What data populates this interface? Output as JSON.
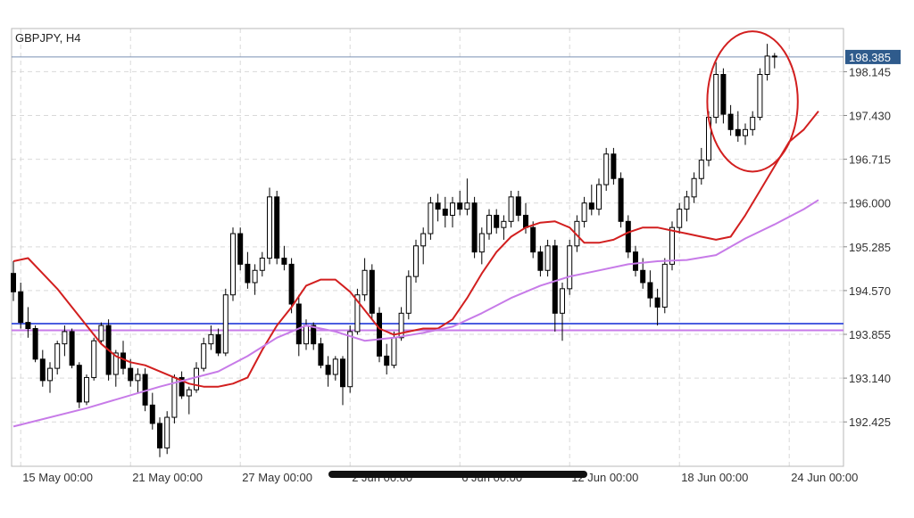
{
  "chart_data": {
    "type": "candlestick",
    "title": "GBPJPY, H4",
    "current_price": 198.385,
    "y_ticks": [
      198.145,
      197.43,
      196.715,
      196.0,
      195.285,
      194.57,
      193.855,
      193.14,
      192.425
    ],
    "ylim": [
      191.7,
      198.85
    ],
    "x_tick_labels": [
      "15 May 00:00",
      "21 May 00:00",
      "27 May 00:00",
      "2 Jun 00:00",
      "6 Jun 00:00",
      "12 Jun 00:00",
      "18 Jun 00:00",
      "24 Jun 00:00"
    ],
    "horizontal_levels": [
      {
        "price": 194.03,
        "color": "#4b5ee0"
      },
      {
        "price": 193.92,
        "color": "#c77be8"
      }
    ],
    "series": [
      {
        "type": "moving_average",
        "color": "#d21f1f",
        "points": [
          [
            0,
            195.05
          ],
          [
            2,
            195.1
          ],
          [
            4,
            194.85
          ],
          [
            6,
            194.6
          ],
          [
            8,
            194.3
          ],
          [
            10,
            194.0
          ],
          [
            12,
            193.7
          ],
          [
            14,
            193.5
          ],
          [
            16,
            193.4
          ],
          [
            18,
            193.35
          ],
          [
            20,
            193.25
          ],
          [
            22,
            193.15
          ],
          [
            24,
            193.05
          ],
          [
            26,
            193.0
          ],
          [
            28,
            193.0
          ],
          [
            30,
            193.05
          ],
          [
            32,
            193.15
          ],
          [
            34,
            193.6
          ],
          [
            36,
            194.0
          ],
          [
            38,
            194.3
          ],
          [
            40,
            194.65
          ],
          [
            42,
            194.75
          ],
          [
            44,
            194.75
          ],
          [
            46,
            194.55
          ],
          [
            48,
            194.25
          ],
          [
            50,
            193.95
          ],
          [
            52,
            193.85
          ],
          [
            54,
            193.9
          ],
          [
            56,
            193.95
          ],
          [
            58,
            193.95
          ],
          [
            60,
            194.1
          ],
          [
            62,
            194.45
          ],
          [
            64,
            194.85
          ],
          [
            66,
            195.2
          ],
          [
            68,
            195.45
          ],
          [
            70,
            195.6
          ],
          [
            72,
            195.68
          ],
          [
            74,
            195.7
          ],
          [
            76,
            195.6
          ],
          [
            78,
            195.35
          ],
          [
            80,
            195.35
          ],
          [
            82,
            195.4
          ],
          [
            84,
            195.52
          ],
          [
            86,
            195.6
          ],
          [
            88,
            195.6
          ],
          [
            90,
            195.55
          ],
          [
            92,
            195.5
          ],
          [
            94,
            195.45
          ],
          [
            96,
            195.4
          ],
          [
            98,
            195.45
          ],
          [
            100,
            195.8
          ],
          [
            102,
            196.2
          ],
          [
            104,
            196.6
          ],
          [
            106,
            197.0
          ],
          [
            108,
            197.2
          ],
          [
            110,
            197.5
          ]
        ]
      },
      {
        "type": "moving_average",
        "color": "#c77be8",
        "points": [
          [
            0,
            192.35
          ],
          [
            10,
            192.65
          ],
          [
            20,
            193.0
          ],
          [
            28,
            193.25
          ],
          [
            32,
            193.5
          ],
          [
            36,
            193.8
          ],
          [
            40,
            194.0
          ],
          [
            44,
            193.9
          ],
          [
            48,
            193.75
          ],
          [
            52,
            193.8
          ],
          [
            56,
            193.88
          ],
          [
            60,
            193.98
          ],
          [
            64,
            194.2
          ],
          [
            68,
            194.45
          ],
          [
            72,
            194.65
          ],
          [
            76,
            194.8
          ],
          [
            80,
            194.9
          ],
          [
            84,
            195.0
          ],
          [
            88,
            195.05
          ],
          [
            92,
            195.07
          ],
          [
            96,
            195.15
          ],
          [
            100,
            195.42
          ],
          [
            104,
            195.65
          ],
          [
            108,
            195.9
          ],
          [
            110,
            196.05
          ]
        ]
      }
    ],
    "candles": [
      [
        194.85,
        195.05,
        194.4,
        194.55
      ],
      [
        194.55,
        194.7,
        193.95,
        194.05
      ],
      [
        194.05,
        194.3,
        193.8,
        193.95
      ],
      [
        193.95,
        194.0,
        193.4,
        193.45
      ],
      [
        193.45,
        193.6,
        193.0,
        193.1
      ],
      [
        193.1,
        193.4,
        192.9,
        193.3
      ],
      [
        193.3,
        193.75,
        193.2,
        193.7
      ],
      [
        193.7,
        194.0,
        193.5,
        193.9
      ],
      [
        193.9,
        193.95,
        193.3,
        193.35
      ],
      [
        193.35,
        193.4,
        192.65,
        192.75
      ],
      [
        192.75,
        193.2,
        192.7,
        193.15
      ],
      [
        193.15,
        193.8,
        193.1,
        193.75
      ],
      [
        193.75,
        194.05,
        193.7,
        194.0
      ],
      [
        194.0,
        194.1,
        193.1,
        193.2
      ],
      [
        193.2,
        193.6,
        193.0,
        193.55
      ],
      [
        193.55,
        193.75,
        193.2,
        193.3
      ],
      [
        193.3,
        193.45,
        193.0,
        193.1
      ],
      [
        193.1,
        193.3,
        192.9,
        193.2
      ],
      [
        193.2,
        193.3,
        192.6,
        192.7
      ],
      [
        192.7,
        192.9,
        192.3,
        192.4
      ],
      [
        192.4,
        192.5,
        191.85,
        192.0
      ],
      [
        192.0,
        192.6,
        191.9,
        192.5
      ],
      [
        192.5,
        193.2,
        192.4,
        193.15
      ],
      [
        193.15,
        193.25,
        192.8,
        192.85
      ],
      [
        192.85,
        193.0,
        192.55,
        192.95
      ],
      [
        192.95,
        193.4,
        192.9,
        193.3
      ],
      [
        193.3,
        193.8,
        193.25,
        193.7
      ],
      [
        193.7,
        194.0,
        193.6,
        193.85
      ],
      [
        193.85,
        193.95,
        193.5,
        193.55
      ],
      [
        193.55,
        194.6,
        193.5,
        194.5
      ],
      [
        194.5,
        195.6,
        194.4,
        195.5
      ],
      [
        195.5,
        195.6,
        194.9,
        195.0
      ],
      [
        195.0,
        195.2,
        194.6,
        194.7
      ],
      [
        194.7,
        195.0,
        194.5,
        194.9
      ],
      [
        194.9,
        195.2,
        194.8,
        195.1
      ],
      [
        195.1,
        196.25,
        195.0,
        196.1
      ],
      [
        196.1,
        196.2,
        195.0,
        195.1
      ],
      [
        195.1,
        195.3,
        194.9,
        195.0
      ],
      [
        195.0,
        195.1,
        194.2,
        194.35
      ],
      [
        194.35,
        194.5,
        193.5,
        193.7
      ],
      [
        193.7,
        194.1,
        193.6,
        194.0
      ],
      [
        194.0,
        194.05,
        193.6,
        193.7
      ],
      [
        193.7,
        193.8,
        193.3,
        193.35
      ],
      [
        193.35,
        193.5,
        193.0,
        193.2
      ],
      [
        193.2,
        193.5,
        193.1,
        193.45
      ],
      [
        193.45,
        193.5,
        192.7,
        193.0
      ],
      [
        193.0,
        194.0,
        192.9,
        193.9
      ],
      [
        193.9,
        194.6,
        193.85,
        194.5
      ],
      [
        194.5,
        195.1,
        194.4,
        194.9
      ],
      [
        194.9,
        195.0,
        194.1,
        194.2
      ],
      [
        194.2,
        194.3,
        193.4,
        193.5
      ],
      [
        193.5,
        193.7,
        193.2,
        193.35
      ],
      [
        193.35,
        193.9,
        193.3,
        193.8
      ],
      [
        193.8,
        194.3,
        193.75,
        194.2
      ],
      [
        194.2,
        194.9,
        194.1,
        194.8
      ],
      [
        194.8,
        195.4,
        194.7,
        195.3
      ],
      [
        195.3,
        195.6,
        195.0,
        195.5
      ],
      [
        195.5,
        196.1,
        195.4,
        196.0
      ],
      [
        196.0,
        196.15,
        195.7,
        195.9
      ],
      [
        195.9,
        196.1,
        195.6,
        195.8
      ],
      [
        195.8,
        196.1,
        195.6,
        196.0
      ],
      [
        196.0,
        196.2,
        195.8,
        195.9
      ],
      [
        195.9,
        196.4,
        195.8,
        196.0
      ],
      [
        196.0,
        196.1,
        195.1,
        195.2
      ],
      [
        195.2,
        195.6,
        195.0,
        195.5
      ],
      [
        195.5,
        195.9,
        195.4,
        195.8
      ],
      [
        195.8,
        195.9,
        195.5,
        195.6
      ],
      [
        195.6,
        195.8,
        195.4,
        195.7
      ],
      [
        195.7,
        196.2,
        195.6,
        196.1
      ],
      [
        196.1,
        196.2,
        195.7,
        195.8
      ],
      [
        195.8,
        196.0,
        195.5,
        195.6
      ],
      [
        195.6,
        195.7,
        195.1,
        195.2
      ],
      [
        195.2,
        195.3,
        194.8,
        194.9
      ],
      [
        194.9,
        195.4,
        194.8,
        195.3
      ],
      [
        195.3,
        195.4,
        193.9,
        194.2
      ],
      [
        194.2,
        194.7,
        193.75,
        194.6
      ],
      [
        194.6,
        195.4,
        194.5,
        195.3
      ],
      [
        195.3,
        195.8,
        195.2,
        195.7
      ],
      [
        195.7,
        196.1,
        195.6,
        196.0
      ],
      [
        196.0,
        196.3,
        195.8,
        195.9
      ],
      [
        195.9,
        196.4,
        195.8,
        196.3
      ],
      [
        196.3,
        196.9,
        196.2,
        196.8
      ],
      [
        196.8,
        196.9,
        196.3,
        196.4
      ],
      [
        196.4,
        196.5,
        195.6,
        195.7
      ],
      [
        195.7,
        195.8,
        195.1,
        195.2
      ],
      [
        195.2,
        195.3,
        194.8,
        194.9
      ],
      [
        194.9,
        195.1,
        194.6,
        194.7
      ],
      [
        194.7,
        194.9,
        194.3,
        194.45
      ],
      [
        194.45,
        194.6,
        194.0,
        194.3
      ],
      [
        194.3,
        195.1,
        194.2,
        195.0
      ],
      [
        195.0,
        195.7,
        194.9,
        195.6
      ],
      [
        195.6,
        196.0,
        195.5,
        195.9
      ],
      [
        195.9,
        196.2,
        195.7,
        196.1
      ],
      [
        196.1,
        196.5,
        196.0,
        196.4
      ],
      [
        196.4,
        196.9,
        196.3,
        196.7
      ],
      [
        196.7,
        197.5,
        196.6,
        197.4
      ],
      [
        197.4,
        198.3,
        197.3,
        198.1
      ],
      [
        198.1,
        198.2,
        197.3,
        197.45
      ],
      [
        197.45,
        197.6,
        197.1,
        197.2
      ],
      [
        197.2,
        197.5,
        197.0,
        197.1
      ],
      [
        197.1,
        197.3,
        196.95,
        197.2
      ],
      [
        197.2,
        197.5,
        197.1,
        197.4
      ],
      [
        197.4,
        198.2,
        197.35,
        198.1
      ],
      [
        198.1,
        198.6,
        198.0,
        198.4
      ],
      [
        198.4,
        198.45,
        198.2,
        198.385
      ]
    ],
    "annotations": [
      {
        "type": "circle",
        "color": "#d21f1f"
      }
    ]
  }
}
